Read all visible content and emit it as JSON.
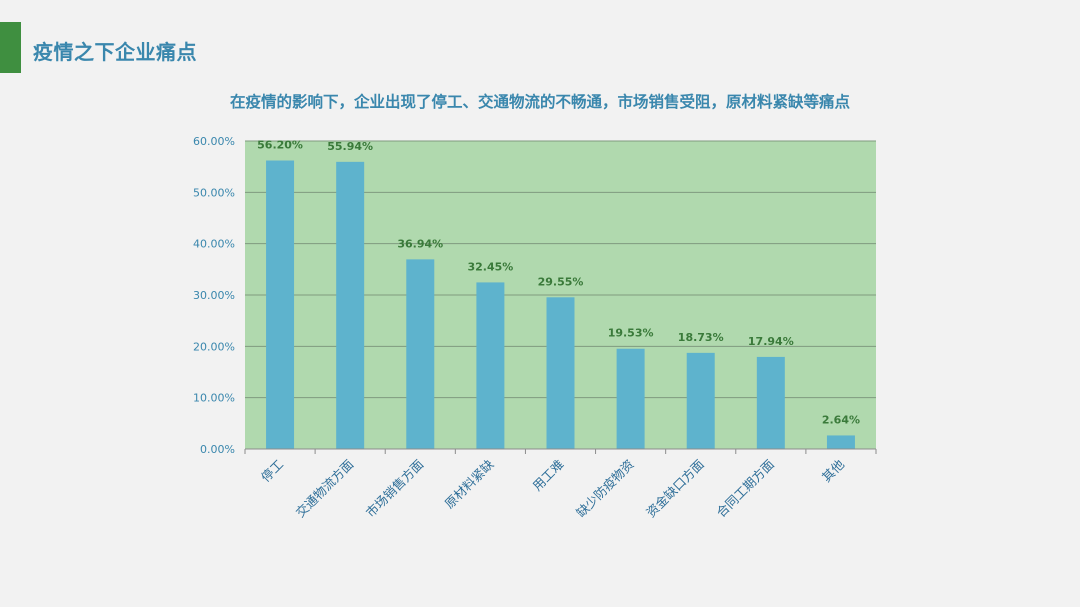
{
  "header": {
    "title": "疫情之下企业痛点",
    "accent_color": "#3f8f40"
  },
  "chart_data": {
    "type": "bar",
    "title": "在疫情的影响下，企业出现了停工、交通物流的不畅通，市场销售受阻，原材料紧缺等痛点",
    "categories": [
      "停工",
      "交通物流方面",
      "市场销售方面",
      "原材料紧缺",
      "用工难",
      "缺少防疫物资",
      "资金缺口方面",
      "合同工期方面",
      "其他"
    ],
    "values": [
      56.2,
      55.94,
      36.94,
      32.45,
      29.55,
      19.53,
      18.73,
      17.94,
      2.64
    ],
    "data_labels": [
      "56.20%",
      "55.94%",
      "36.94%",
      "32.45%",
      "29.55%",
      "19.53%",
      "18.73%",
      "17.94%",
      "2.64%"
    ],
    "y_ticks": [
      "0.00%",
      "10.00%",
      "20.00%",
      "30.00%",
      "40.00%",
      "50.00%",
      "60.00%"
    ],
    "ylim": [
      0,
      60
    ],
    "xlabel": "",
    "ylabel": "",
    "grid": true,
    "colors": {
      "bar": "#5eb3cd",
      "plot_background": "#b0d9ae",
      "gridline": "#7f9a7f",
      "data_label": "#3a7a3a",
      "axis_label": "#3a87ad",
      "category_label": "#2f6f99"
    }
  }
}
